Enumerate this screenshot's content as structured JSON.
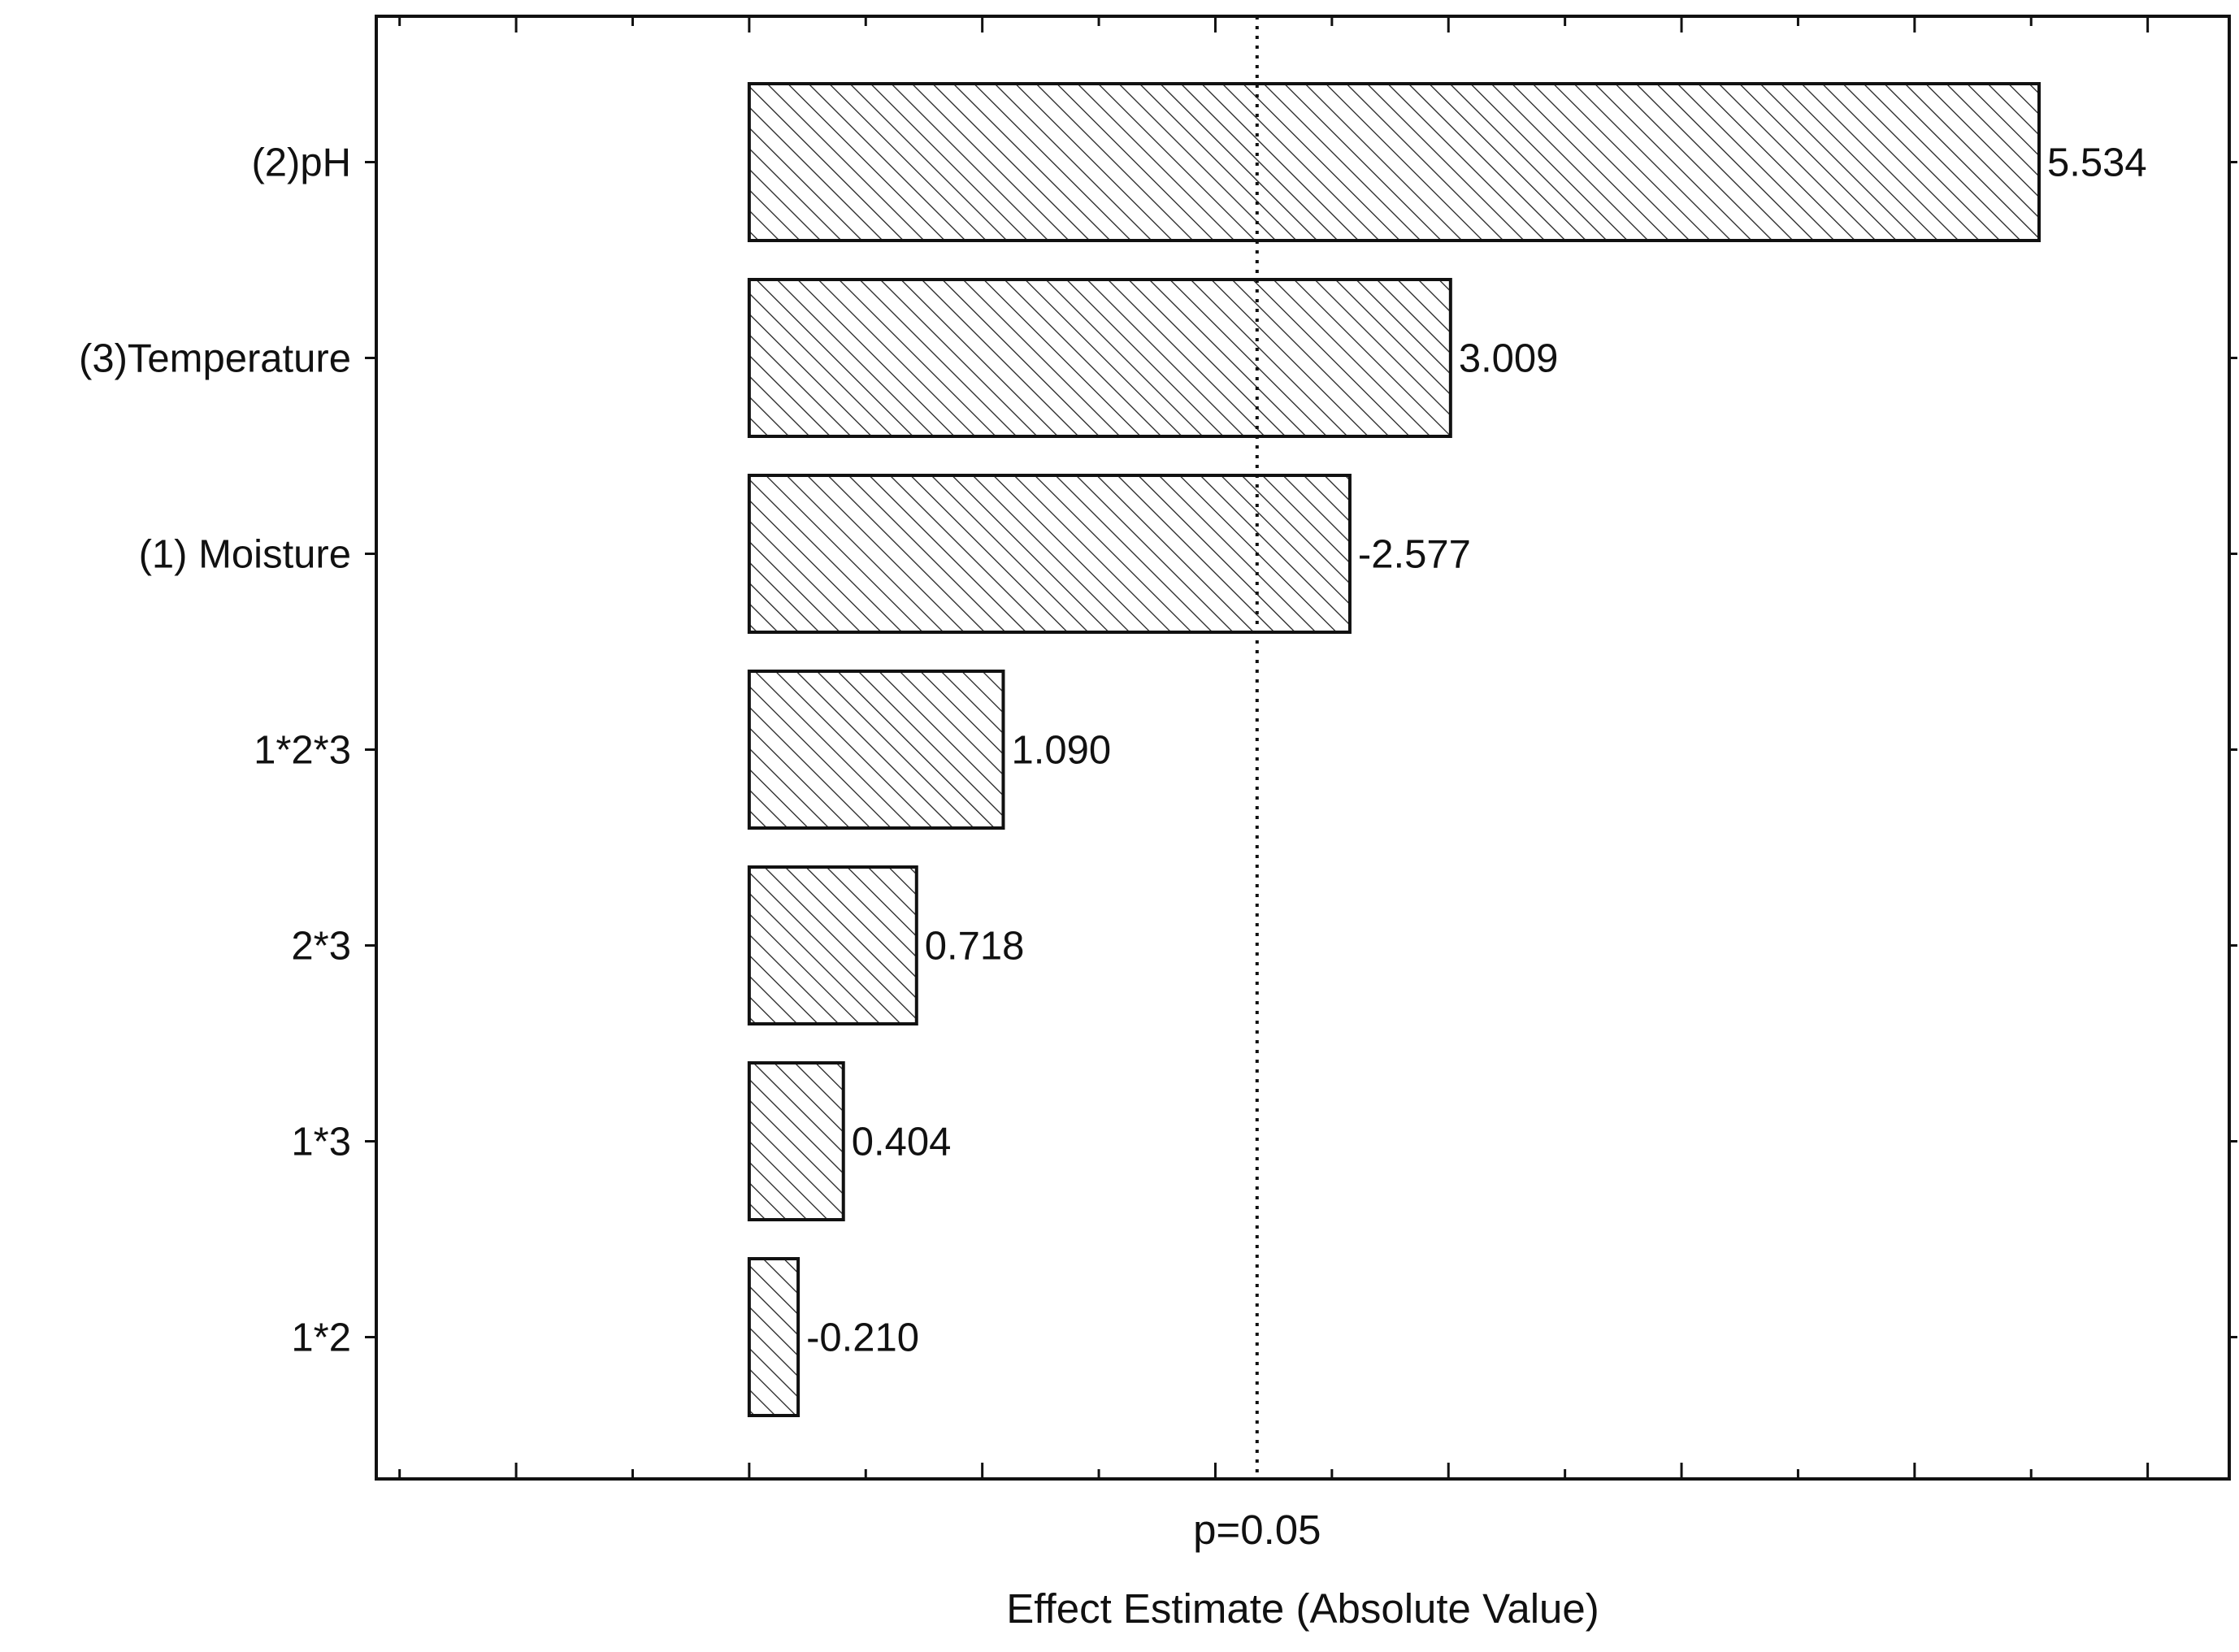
{
  "chart_data": {
    "type": "bar",
    "orientation": "horizontal",
    "title": "",
    "xlabel": "Effect Estimate (Absolute Value)",
    "ylabel": "",
    "categories": [
      "(2)pH",
      "(3)Temperature",
      "(1) Moisturе",
      "1*2*3",
      "2*3",
      "1*3",
      "1*2"
    ],
    "values": [
      5.534,
      3.009,
      -2.577,
      1.09,
      0.718,
      0.404,
      -0.21
    ],
    "value_labels": [
      "5.534",
      "3.009",
      "-2.577",
      "1.090",
      "0.718",
      "0.404",
      "-0.210"
    ],
    "xlim": [
      -1.6,
      6.35
    ],
    "bar_length": "absolute value",
    "reference_line": {
      "value": 2.179,
      "label": "p=0.05",
      "style": "dotted"
    },
    "bar_fill": "diagonal hatch",
    "grid": false,
    "legend": "none"
  }
}
